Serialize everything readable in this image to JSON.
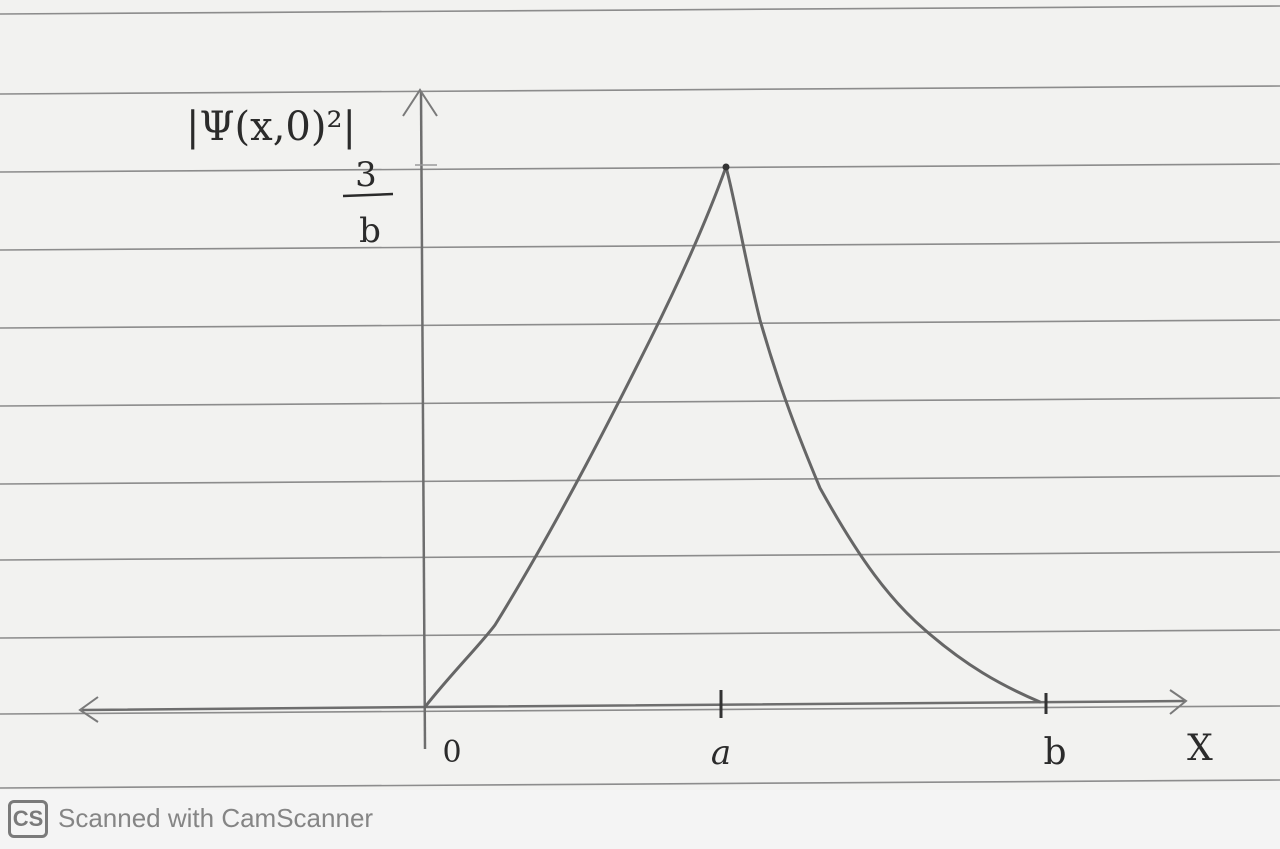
{
  "chart_data": {
    "type": "line",
    "ylabel": "|Ψ(x,0)²|",
    "xlabel": "X",
    "y_peak_label_numerator": "3",
    "y_peak_label_denominator": "b",
    "x_tick_labels": [
      "0",
      "a",
      "b"
    ],
    "x_ticks_symbolic": [
      "0",
      "a",
      "b"
    ],
    "series": [
      {
        "points": [
          {
            "x": "0",
            "y": 0
          },
          {
            "x": "a",
            "y": "3/b"
          },
          {
            "x": "b",
            "y": 0
          }
        ]
      }
    ],
    "grid": false,
    "legend": "none"
  },
  "watermark": {
    "logo_text": "CS",
    "text": "Scanned with CamScanner"
  },
  "colors": {
    "ink": "#2b2b2b",
    "pencil": "#6e6e6e",
    "rule_line": "#8c8c8c",
    "paper": "#f2f2f0"
  }
}
